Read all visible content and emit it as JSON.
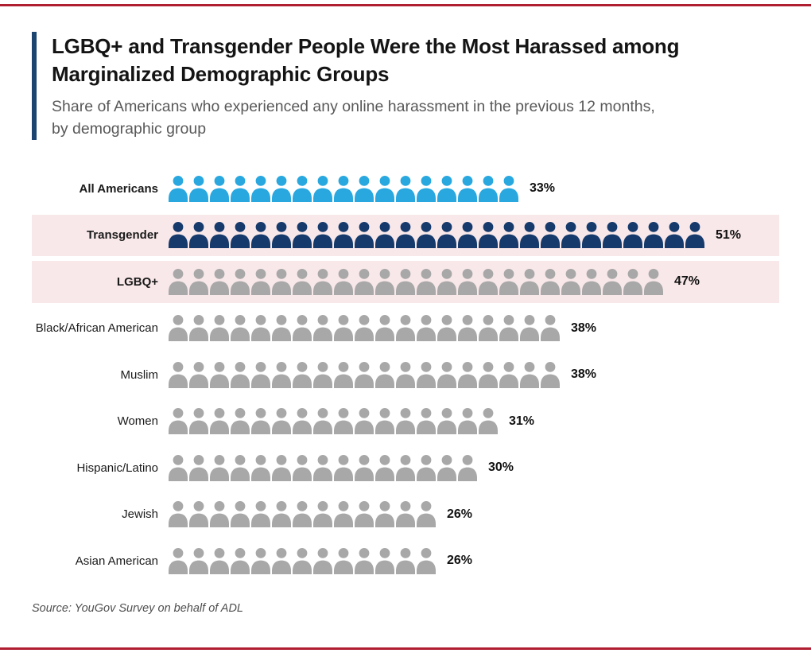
{
  "colors": {
    "rule_red": "#b01e32",
    "accent_navy": "#1b4470",
    "blue": "#29a8e0",
    "navy": "#153a6b",
    "gray": "#a8a8a8",
    "highlight_pink": "#f9e8ea",
    "title_text": "#141414",
    "subtitle_text": "#595959"
  },
  "header": {
    "title": "LGBQ+ and Transgender People Were the Most Harassed among Marginalized Demographic Groups",
    "title_lines": [
      "LGBQ+ and Transgender People Were the Most Harassed among",
      "Marginalized Demographic Groups"
    ],
    "subtitle": "Share of Americans who experienced any online harassment in the previous 12 months, by demographic group",
    "subtitle_lines": [
      "Share of Americans who experienced any online harassment in the previous 12 months,",
      "by demographic group"
    ]
  },
  "chart_data": {
    "type": "pictogram",
    "title": "LGBQ+ and Transgender People Were the Most Harassed among Marginalized Demographic Groups",
    "subtitle": "Share of Americans who experienced any online harassment in the previous 12 months, by demographic group",
    "unit": "1 person icon ≈ 2 percentage points",
    "categories": [
      "All Americans",
      "Transgender",
      "LGBQ+",
      "Black/African American",
      "Muslim",
      "Women",
      "Hispanic/Latino",
      "Jewish",
      "Asian American"
    ],
    "values": [
      33,
      51,
      47,
      38,
      38,
      31,
      30,
      26,
      26
    ],
    "value_labels": [
      "33%",
      "51%",
      "47%",
      "38%",
      "38%",
      "31%",
      "30%",
      "26%",
      "26%"
    ],
    "icon_counts": [
      17,
      26,
      24,
      19,
      19,
      16,
      15,
      13,
      13
    ],
    "highlighted": [
      "Transgender",
      "LGBQ+"
    ],
    "legend_position": "none",
    "grid": false,
    "rows": [
      {
        "label": "All Americans",
        "value_label": "33%",
        "icons": 17,
        "color": "blue",
        "bold": true,
        "highlight": false
      },
      {
        "label": "Transgender",
        "value_label": "51%",
        "icons": 26,
        "color": "navy",
        "bold": true,
        "highlight": true
      },
      {
        "label": "LGBQ+",
        "value_label": "47%",
        "icons": 24,
        "color": "gray",
        "bold": true,
        "highlight": true
      },
      {
        "label": "Black/African American",
        "value_label": "38%",
        "icons": 19,
        "color": "gray",
        "bold": false,
        "highlight": false
      },
      {
        "label": "Muslim",
        "value_label": "38%",
        "icons": 19,
        "color": "gray",
        "bold": false,
        "highlight": false
      },
      {
        "label": "Women",
        "value_label": "31%",
        "icons": 16,
        "color": "gray",
        "bold": false,
        "highlight": false
      },
      {
        "label": "Hispanic/Latino",
        "value_label": "30%",
        "icons": 15,
        "color": "gray",
        "bold": false,
        "highlight": false
      },
      {
        "label": "Jewish",
        "value_label": "26%",
        "icons": 13,
        "color": "gray",
        "bold": false,
        "highlight": false
      },
      {
        "label": "Asian American",
        "value_label": "26%",
        "icons": 13,
        "color": "gray",
        "bold": false,
        "highlight": false
      }
    ]
  },
  "source": {
    "text": "Source: YouGov Survey on behalf of ADL"
  }
}
